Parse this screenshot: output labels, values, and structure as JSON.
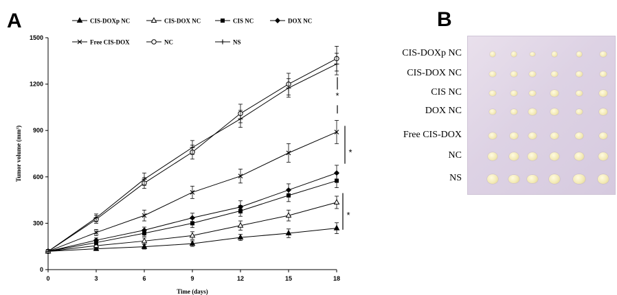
{
  "panels": {
    "a": "A",
    "b": "B"
  },
  "chart_data": {
    "type": "line",
    "title": "",
    "xlabel": "Time (days)",
    "ylabel": "Tumor volume (mm³)",
    "x": [
      0,
      3,
      6,
      9,
      12,
      15,
      18
    ],
    "xlim": [
      0,
      18
    ],
    "ylim": [
      0,
      1500
    ],
    "xticks": [
      0,
      3,
      6,
      9,
      12,
      15,
      18
    ],
    "yticks": [
      0,
      300,
      600,
      900,
      1200,
      1500
    ],
    "grid": false,
    "legend_position": "top",
    "series": [
      {
        "name": "CIS-DOXp NC",
        "marker": "filled-triangle",
        "values": [
          118,
          135,
          148,
          168,
          208,
          235,
          268
        ],
        "errors": [
          10,
          12,
          15,
          18,
          20,
          28,
          35
        ]
      },
      {
        "name": "CIS-DOX NC",
        "marker": "open-triangle",
        "values": [
          118,
          155,
          185,
          220,
          285,
          350,
          435
        ],
        "errors": [
          10,
          15,
          20,
          25,
          30,
          35,
          40
        ]
      },
      {
        "name": "CIS NC",
        "marker": "filled-square",
        "values": [
          118,
          175,
          235,
          300,
          380,
          480,
          575
        ],
        "errors": [
          10,
          15,
          20,
          28,
          35,
          40,
          45
        ]
      },
      {
        "name": "DOX NC",
        "marker": "filled-diamond",
        "values": [
          118,
          190,
          255,
          335,
          405,
          515,
          625
        ],
        "errors": [
          10,
          15,
          20,
          30,
          40,
          40,
          50
        ]
      },
      {
        "name": "Free CIS-DOX",
        "marker": "x",
        "values": [
          118,
          240,
          350,
          500,
          605,
          755,
          890
        ],
        "errors": [
          10,
          20,
          35,
          40,
          45,
          60,
          75
        ]
      },
      {
        "name": "NC",
        "marker": "open-circle",
        "values": [
          118,
          325,
          560,
          760,
          1010,
          1200,
          1365
        ],
        "errors": [
          10,
          25,
          35,
          45,
          60,
          70,
          80
        ]
      },
      {
        "name": "NS",
        "marker": "plus",
        "values": [
          118,
          335,
          585,
          790,
          975,
          1175,
          1330
        ],
        "errors": [
          10,
          25,
          40,
          45,
          55,
          60,
          70
        ]
      }
    ],
    "significance": [
      {
        "label": "*",
        "between": [
          "NC",
          "Free CIS-DOX"
        ],
        "at_x": 18
      },
      {
        "label": "*",
        "between": [
          "Free CIS-DOX",
          "DOX NC"
        ],
        "at_x": 18
      },
      {
        "label": "*",
        "between": [
          "CIS-DOX NC",
          "CIS-DOXp NC"
        ],
        "at_x": 18
      }
    ]
  },
  "photo": {
    "background_color": "#ddd2e4",
    "tumor_color": "#f3eab8",
    "rows": [
      {
        "label": "CIS-DOXp NC",
        "tumor_sizes": [
          0.3,
          0.3,
          0.25,
          0.3,
          0.3,
          0.35
        ]
      },
      {
        "label": "CIS-DOX NC",
        "tumor_sizes": [
          0.35,
          0.4,
          0.35,
          0.4,
          0.4,
          0.4
        ]
      },
      {
        "label": "CIS NC",
        "tumor_sizes": [
          0.4,
          0.4,
          0.4,
          0.45,
          0.4,
          0.45
        ]
      },
      {
        "label": "DOX NC",
        "tumor_sizes": [
          0.4,
          0.4,
          0.45,
          0.45,
          0.4,
          0.45
        ]
      },
      {
        "label": "Free CIS-DOX",
        "tumor_sizes": [
          0.5,
          0.45,
          0.5,
          0.5,
          0.5,
          0.5
        ]
      },
      {
        "label": "NC",
        "tumor_sizes": [
          0.65,
          0.6,
          0.6,
          0.65,
          0.6,
          0.65
        ]
      },
      {
        "label": "NS",
        "tumor_sizes": [
          0.75,
          0.7,
          0.7,
          0.8,
          0.85,
          0.75
        ]
      }
    ]
  }
}
